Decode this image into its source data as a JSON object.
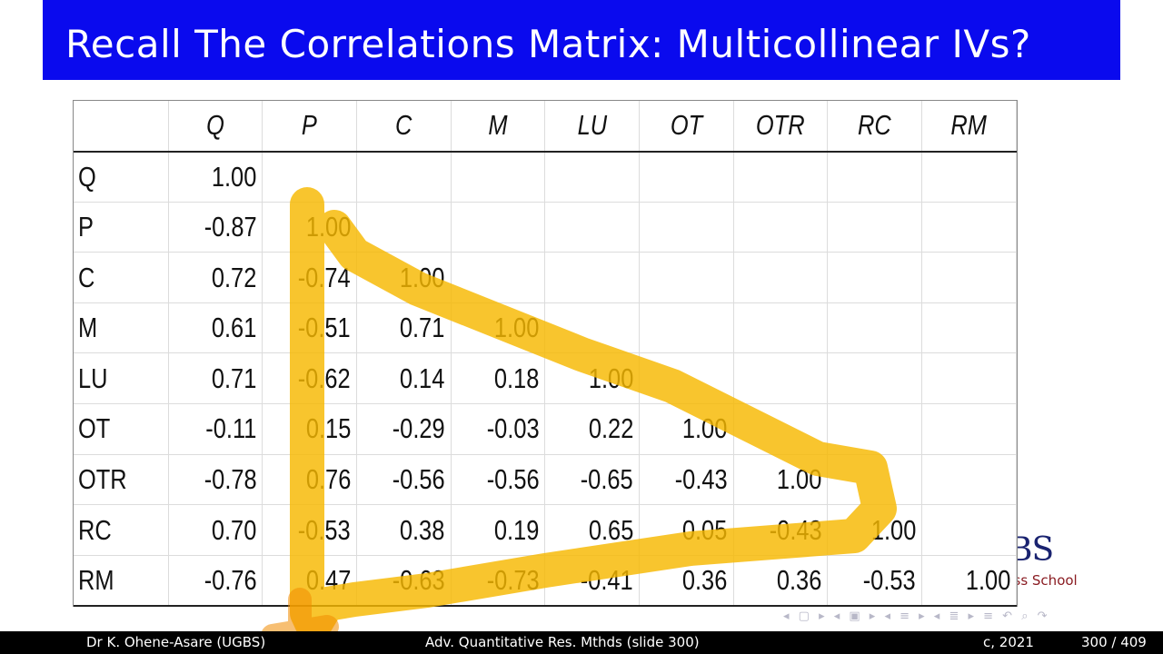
{
  "slide": {
    "title": "Recall The Correlations Matrix: Multicollinear IVs?"
  },
  "matrix": {
    "columns": [
      "Q",
      "P",
      "C",
      "M",
      "LU",
      "OT",
      "OTR",
      "RC",
      "RM"
    ],
    "rows": [
      {
        "label": "Q",
        "values": [
          "1.00"
        ]
      },
      {
        "label": "P",
        "values": [
          "-0.87",
          "1.00"
        ]
      },
      {
        "label": "C",
        "values": [
          "0.72",
          "-0.74",
          "1.00"
        ]
      },
      {
        "label": "M",
        "values": [
          "0.61",
          "-0.51",
          "0.71",
          "1.00"
        ]
      },
      {
        "label": "LU",
        "values": [
          "0.71",
          "-0.62",
          "0.14",
          "0.18",
          "1.00"
        ]
      },
      {
        "label": "OT",
        "values": [
          "-0.11",
          "0.15",
          "-0.29",
          "-0.03",
          "0.22",
          "1.00"
        ]
      },
      {
        "label": "OTR",
        "values": [
          "-0.78",
          "0.76",
          "-0.56",
          "-0.56",
          "-0.65",
          "-0.43",
          "1.00"
        ]
      },
      {
        "label": "RC",
        "values": [
          "0.70",
          "-0.53",
          "0.38",
          "0.19",
          "0.65",
          "0.05",
          "-0.43",
          "1.00"
        ]
      },
      {
        "label": "RM",
        "values": [
          "-0.76",
          "0.47",
          "-0.63",
          "-0.73",
          "-0.41",
          "0.36",
          "0.36",
          "-0.53",
          "1.00"
        ]
      }
    ]
  },
  "logo": {
    "mark": "BS",
    "subtitle": "Business School"
  },
  "footer": {
    "author": "Dr K. Ohene-Asare  (UGBS)",
    "course": "Adv. Quantitative Res. Mthds (slide 300)",
    "year": "c, 2021",
    "page": "300 / 409"
  },
  "colors": {
    "title_bar": "#0a0aee",
    "highlight": "#f7b800",
    "footer": "#000000"
  }
}
